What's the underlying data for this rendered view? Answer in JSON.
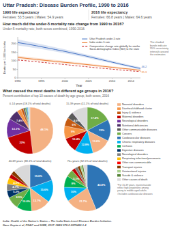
{
  "chart_data": [
    {
      "type": "line",
      "title": "How much did the under-5 mortality rate change from 1990 to 2016?",
      "subtitle": "Under-5 mortality rate, both sexes combined, 1990-2016",
      "x_label": "Year",
      "y_label": "Deaths per 1,000 live births",
      "x": [
        1990,
        1992,
        1994,
        1996,
        1998,
        2000,
        2002,
        2004,
        2006,
        2008,
        2010,
        2012,
        2014,
        2016
      ],
      "series": [
        {
          "name": "Uttar Pradesh under-5 rate",
          "color": "#4472c4",
          "values": [
            207,
            198,
            188,
            177,
            166,
            155,
            143,
            131,
            118,
            105,
            92,
            79,
            67,
            55
          ],
          "upper": [
            225,
            214,
            203,
            191,
            179,
            167,
            154,
            141,
            128,
            114,
            100,
            87,
            74,
            63
          ],
          "lower": [
            190,
            182,
            173,
            164,
            154,
            144,
            133,
            122,
            109,
            97,
            85,
            73,
            61,
            48
          ]
        },
        {
          "name": "India under-5 rate",
          "color": "#ed7d31",
          "values": [
            120,
            114,
            108,
            102,
            97,
            91,
            86,
            80,
            74,
            68,
            62,
            56,
            51,
            44
          ],
          "upper": [
            130,
            123,
            117,
            111,
            105,
            99,
            93,
            87,
            81,
            74,
            68,
            62,
            56,
            49
          ],
          "lower": [
            110,
            105,
            100,
            94,
            89,
            84,
            79,
            74,
            68,
            62,
            57,
            51,
            46,
            40
          ]
        },
        {
          "name": "Comparative change rate globally for similar\nSocio-demographic Index (SDI) to the state",
          "color": "#c00000",
          "line_style": "dashed",
          "values": [
            105,
            100,
            94,
            89,
            83,
            78,
            72,
            67,
            61,
            56,
            51,
            46,
            41,
            37
          ]
        }
      ],
      "xlim": [
        1990,
        2016
      ],
      "xticks": [
        1990,
        1995,
        2000,
        2005,
        2010,
        2014
      ],
      "ylim": [
        0,
        240
      ],
      "yticks": [
        0,
        50,
        100,
        150,
        200
      ],
      "legend": "upper right",
      "annotations": [
        "46.2",
        "35.3",
        "The shaded\nbands indicate\n95% uncertainty\nintervals around\nthe estimates"
      ]
    },
    {
      "type": "pie",
      "title": "0-14 years (18.1% of total deaths)",
      "values": [
        48.1,
        22.0,
        13.1,
        7.4,
        3.0,
        1.7,
        1.2,
        0.9,
        0.8,
        0.5,
        1.3
      ],
      "colors": [
        "#f4b183",
        "#c00000",
        "#7030a0",
        "#4f2f6b",
        "#f79646",
        "#c55a11",
        "#595959",
        "#70ad47",
        "#2e75b6",
        "#00b0f0",
        "#d9d9d9"
      ],
      "value_labels": [
        "48.1%",
        "22%",
        "13.1%",
        "7.4%",
        null,
        null,
        null,
        null,
        null,
        null,
        null
      ],
      "data_labels": true
    },
    {
      "type": "pie",
      "title": "15-39 years (11.1% of total deaths)",
      "values": [
        17.4,
        15.0,
        13.6,
        12.8,
        10.4,
        9.0,
        6.0,
        4.6,
        0.3,
        0.1,
        10.8
      ],
      "colors": [
        "#70ad47",
        "#2e75b6",
        "#f4b183",
        "#00b0f0",
        "#c00000",
        "#f79646",
        "#c55a11",
        "#595959",
        "#7030a0",
        "#4f2f6b",
        "#d9d9d9"
      ],
      "value_labels": [
        "17.4%",
        "15%",
        "13.6%",
        "12.8%",
        "10.4%",
        "9%",
        "6%",
        "4.6%",
        null,
        null,
        null
      ],
      "data_labels": true
    },
    {
      "type": "pie",
      "title": "40-69 years (38.1% of total deaths)",
      "values": [
        19.6,
        15.6,
        13.7,
        10.6,
        8.5,
        5.2,
        4.7,
        4.3,
        3.0,
        2.7,
        12.1
      ],
      "colors": [
        "#2e75b6",
        "#00b0f0",
        "#f4b183",
        "#00b050",
        "#70ad47",
        "#003366",
        "#7f7f7f",
        "#ffc000",
        "#c00000",
        "#833c00",
        "#d9d9d9"
      ],
      "value_labels": [
        "19.6%",
        "15.6%",
        "13.7%",
        "10.6%",
        "8.5%",
        "5.2%",
        "4.7%",
        "4.3%",
        null,
        null,
        null
      ],
      "data_labels": true
    },
    {
      "type": "pie",
      "title": "70+ years (32.5% of total deaths)",
      "values": [
        43.8,
        21.7,
        10.0,
        8.0,
        5.1,
        2.4,
        2.1,
        1.7,
        1.4,
        1.0,
        2.8
      ],
      "colors": [
        "#2e75b6",
        "#f4b183",
        "#00b0f0",
        "#00b050",
        "#70ad47",
        "#c00000",
        "#7f7f7f",
        "#833c00",
        "#a9d18e",
        "#548235",
        "#d9d9d9"
      ],
      "value_labels": [
        "43.8%",
        "21.7%",
        "10%",
        "8%",
        "5.1%",
        null,
        null,
        null,
        null,
        null,
        null
      ],
      "data_labels": true
    }
  ],
  "page": {
    "title": "Uttar Pradesh: Disease Burden Profile, 1990 to 2016",
    "life_expectancy": [
      {
        "label": "1990 life expectancy",
        "text": "Females: 53.5 years  |  Males: 54.9 years"
      },
      {
        "label": "2016 life expectancy",
        "text": "Females: 66.8 years  |  Males: 64.6 years"
      }
    ],
    "section_title": "What caused the most deaths in different age groups in 2016?",
    "section_subtitle": "Percent contribution of top 10 causes of death by age group, both sexes, 2016",
    "legend_entries": [
      {
        "name": "Neonatal disorders",
        "color": "#f4b183"
      },
      {
        "name": "Diarrhea/childhood cluster",
        "color": "#f79646"
      },
      {
        "name": "Injury & violence",
        "color": "#c55a11"
      },
      {
        "name": "Maternal disorders",
        "color": "#c00000"
      },
      {
        "name": "Neurological disorders",
        "color": "#7030a0"
      },
      {
        "name": "Nutritional deficiencies",
        "color": "#4f2f6b"
      },
      {
        "name": "Other communicable diseases",
        "color": "#595959"
      },
      {
        "name": "Cancers",
        "color": "#70ad47"
      },
      {
        "name": "Cardiovascular diseases",
        "color": "#2e75b6"
      },
      {
        "name": "Chronic respiratory diseases",
        "color": "#00b0f0"
      },
      {
        "name": "Cirrhosis",
        "color": "#00b050"
      },
      {
        "name": "Digestive diseases",
        "color": "#003366"
      },
      {
        "name": "Neurological disorders",
        "color": "#7f7f7f"
      },
      {
        "name": "Respiratory infections/pneumonia",
        "color": "#ffc000"
      },
      {
        "name": "Other non-communicable",
        "color": "#ff0000"
      },
      {
        "name": "Transport injuries",
        "color": "#833c00"
      },
      {
        "name": "Unintentional injuries",
        "color": "#a9d18e"
      },
      {
        "name": "Suicide & violence",
        "color": "#548235"
      },
      {
        "name": "Other causes of death",
        "color": "#d9d9d9"
      }
    ],
    "legend_note": "*For 15-39 years, injuries/suicide\nreflect high proportions among\nyoung to middle-aged adults.\n#Includes cardiovascular diseases",
    "footer": "India: Health of the Nation’s States – The India State-Level Disease Burden Initiative.\nNasc Gupta et al, PNAC and IHME, 2017. ISBN 978-0-9976462-1-4"
  }
}
